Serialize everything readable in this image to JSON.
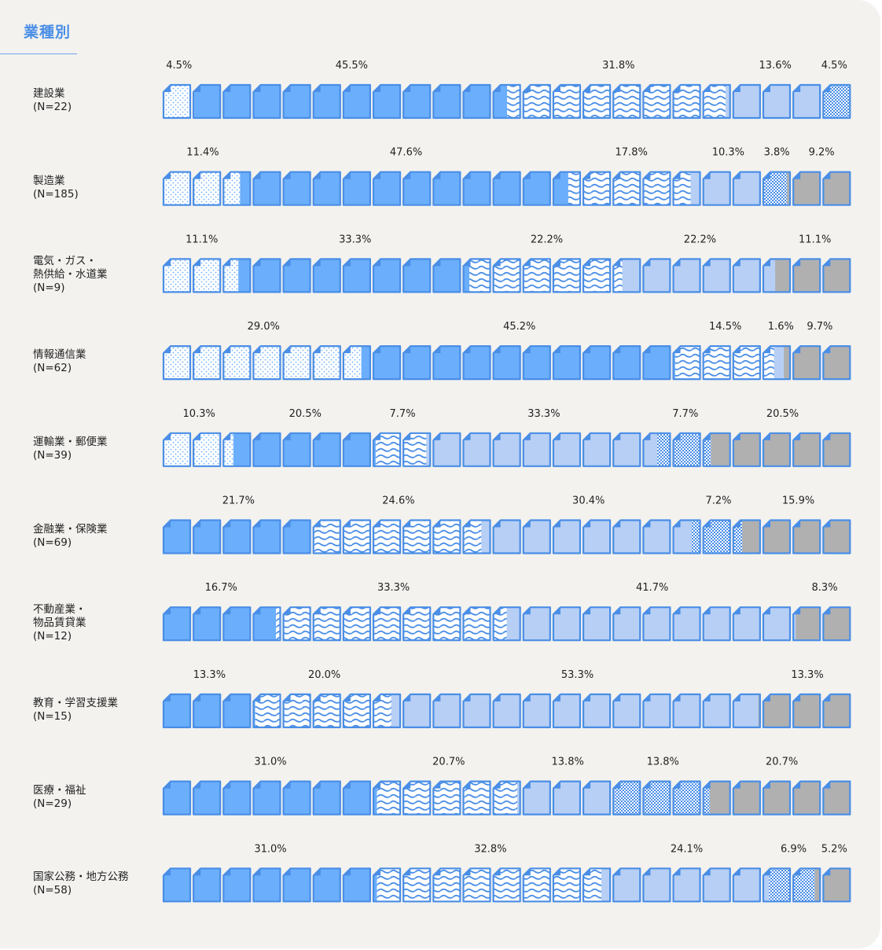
{
  "title": "業種別",
  "chart_data": {
    "type": "waffle-icon-bar",
    "icons_per_row": 23,
    "series": [
      {
        "name": "",
        "color": "#6aaefc",
        "pattern": "dots"
      },
      {
        "name": "",
        "color": "#6aaefc",
        "pattern": "solid"
      },
      {
        "name": "",
        "color": "#6aaefc",
        "pattern": "waves"
      },
      {
        "name": "",
        "color": "#b7cff5",
        "pattern": "solid"
      },
      {
        "name": "",
        "color": "#6aaefc",
        "pattern": "checker"
      },
      {
        "name": "",
        "color": "#b0b0b0",
        "pattern": "solid"
      }
    ],
    "rows": [
      {
        "label": "建設業\n(N=22)",
        "values": [
          4.5,
          45.5,
          31.8,
          13.6,
          4.5,
          0
        ],
        "value_labels": [
          "4.5%",
          "45.5%",
          "31.8%",
          "13.6%",
          "4.5%",
          ""
        ]
      },
      {
        "label": "製造業\n(N=185)",
        "values": [
          11.4,
          47.6,
          17.8,
          10.3,
          3.8,
          9.2
        ],
        "value_labels": [
          "11.4%",
          "47.6%",
          "17.8%",
          "10.3%",
          "3.8%",
          "9.2%"
        ]
      },
      {
        "label": "電気・ガス・\n熱供給・水道業\n(N=9)",
        "values": [
          11.1,
          33.3,
          22.2,
          22.2,
          0,
          11.1
        ],
        "value_labels": [
          "11.1%",
          "33.3%",
          "22.2%",
          "22.2%",
          "",
          "11.1%"
        ]
      },
      {
        "label": "情報通信業\n(N=62)",
        "values": [
          29.0,
          45.2,
          14.5,
          1.6,
          0,
          9.7
        ],
        "value_labels": [
          "29.0%",
          "45.2%",
          "14.5%",
          "1.6%",
          "",
          "9.7%"
        ]
      },
      {
        "label": "運輸業・郵便業\n(N=39)",
        "values": [
          10.3,
          20.5,
          7.7,
          33.3,
          7.7,
          20.5
        ],
        "value_labels": [
          "10.3%",
          "20.5%",
          "7.7%",
          "33.3%",
          "7.7%",
          "20.5%"
        ]
      },
      {
        "label": "金融業・保険業\n(N=69)",
        "values": [
          0,
          21.7,
          24.6,
          30.4,
          7.2,
          15.9
        ],
        "value_labels": [
          "",
          "21.7%",
          "24.6%",
          "30.4%",
          "7.2%",
          "15.9%"
        ]
      },
      {
        "label": "不動産業・\n物品賃貸業\n(N=12)",
        "values": [
          0,
          16.7,
          33.3,
          41.7,
          0,
          8.3
        ],
        "value_labels": [
          "",
          "16.7%",
          "33.3%",
          "41.7%",
          "",
          "8.3%"
        ]
      },
      {
        "label": "教育・学習支援業\n(N=15)",
        "values": [
          0,
          13.3,
          20.0,
          53.3,
          0,
          13.3
        ],
        "value_labels": [
          "",
          "13.3%",
          "20.0%",
          "53.3%",
          "",
          "13.3%"
        ]
      },
      {
        "label": "医療・福祉\n(N=29)",
        "values": [
          0,
          31.0,
          20.7,
          13.8,
          13.8,
          20.7
        ],
        "value_labels": [
          "",
          "31.0%",
          "20.7%",
          "13.8%",
          "13.8%",
          "20.7%"
        ]
      },
      {
        "label": "国家公務・地方公務\n(N=58)",
        "values": [
          0,
          31.0,
          32.8,
          24.1,
          6.9,
          5.2
        ],
        "value_labels": [
          "",
          "31.0%",
          "32.8%",
          "24.1%",
          "6.9%",
          "5.2%"
        ]
      }
    ]
  }
}
